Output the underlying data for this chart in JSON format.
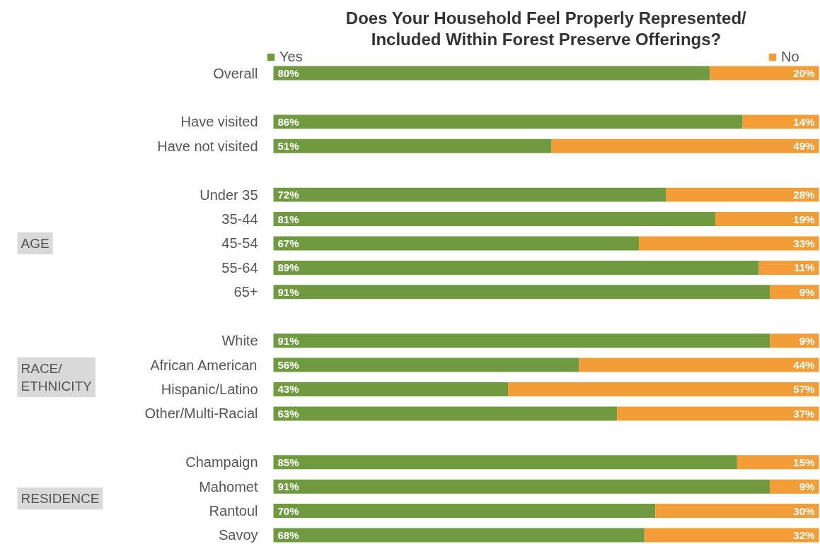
{
  "chart_data": {
    "type": "bar",
    "orientation": "horizontal",
    "stacked": true,
    "title": "Does Your Household Feel Properly Represented/\nIncluded Within Forest Preserve Offerings?",
    "categories": [
      "Overall",
      null,
      "Have visited",
      "Have not visited",
      null,
      "Under 35",
      "35-44",
      "45-54",
      "55-64",
      "65+",
      null,
      "White",
      "African American",
      "Hispanic/Latino",
      "Other/Multi-Racial",
      null,
      "Champaign",
      "Mahomet",
      "Rantoul",
      "Savoy"
    ],
    "series": [
      {
        "name": "Yes",
        "color": "#6f9a3f",
        "values": [
          80,
          null,
          86,
          51,
          null,
          72,
          81,
          67,
          89,
          91,
          null,
          91,
          56,
          43,
          63,
          null,
          85,
          91,
          70,
          68
        ],
        "value_labels": [
          "80%",
          null,
          "86%",
          "51%",
          null,
          "72%",
          "81%",
          "67%",
          "89%",
          "91%",
          null,
          "91%",
          "56%",
          "43%",
          "63%",
          null,
          "85%",
          "91%",
          "70%",
          "68%"
        ]
      },
      {
        "name": "No",
        "color": "#f29d38",
        "values": [
          20,
          null,
          14,
          49,
          null,
          28,
          19,
          33,
          11,
          9,
          null,
          9,
          44,
          57,
          37,
          null,
          15,
          9,
          30,
          32
        ],
        "value_labels": [
          "20%",
          null,
          "14%",
          "49%",
          null,
          "28%",
          "19%",
          "33%",
          "11%",
          "9%",
          null,
          "9%",
          "44%",
          "57%",
          "37%",
          null,
          "15%",
          "9%",
          "30%",
          "32%"
        ]
      }
    ],
    "annotations": [
      "AGE",
      "RACE/\nETHNICITY",
      "RESIDENCE"
    ],
    "legend": "top",
    "grid": false
  }
}
